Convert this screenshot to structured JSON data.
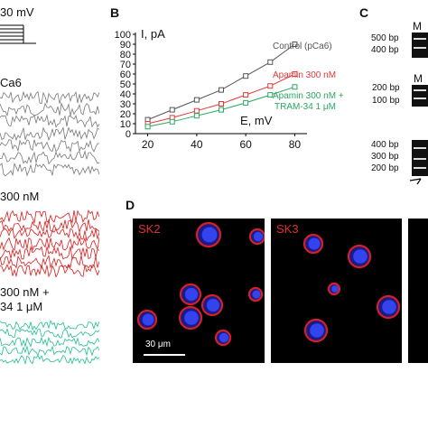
{
  "panelA": {
    "stim_label": "30 mV",
    "traces": [
      {
        "label": "Ca6",
        "color": "#777777"
      },
      {
        "label": "300 nM",
        "color": "#e01818"
      },
      {
        "label": "300 nM +",
        "label2": "34 1 μM",
        "color": "#1fbf8f"
      }
    ]
  },
  "panelB": {
    "letter": "B",
    "chart_data": {
      "type": "line",
      "xlabel": "E, mV",
      "ylabel": "I, pA",
      "xlim": [
        15,
        85
      ],
      "ylim": [
        0,
        100
      ],
      "xticks": [
        20,
        40,
        60,
        80
      ],
      "yticks": [
        0,
        10,
        20,
        30,
        40,
        50,
        60,
        70,
        80,
        90,
        100
      ],
      "grid": false,
      "legend": "inline-right",
      "series": [
        {
          "name": "Control (pCa6)",
          "color": "#555555",
          "x": [
            20,
            30,
            40,
            50,
            60,
            70,
            80
          ],
          "y": [
            14,
            24,
            34,
            44,
            58,
            72,
            90
          ]
        },
        {
          "name": "Apamin 300 nM",
          "color": "#e03a3a",
          "x": [
            20,
            30,
            40,
            50,
            60,
            70,
            80
          ],
          "y": [
            10,
            16,
            23,
            30,
            39,
            48,
            60
          ]
        },
        {
          "name": "Apamin 300 nM +",
          "name2": "TRAM-34 1 μM",
          "color": "#2aa860",
          "x": [
            20,
            30,
            40,
            50,
            60,
            70,
            80
          ],
          "y": [
            7,
            12,
            18,
            24,
            31,
            39,
            47
          ]
        }
      ]
    }
  },
  "panelC": {
    "letter": "C",
    "gel1": {
      "labels": [
        "500 bp",
        "400 bp"
      ],
      "lane": "M"
    },
    "gel2": {
      "labels": [
        "200 bp",
        "100 bp"
      ],
      "lane": "M"
    },
    "gel3": {
      "labels": [
        "400 bp",
        "300 bp",
        "200 bp"
      ]
    }
  },
  "panelD": {
    "letter": "D",
    "images": [
      {
        "label": "SK2"
      },
      {
        "label": "SK3"
      }
    ],
    "scalebar": "30 μm"
  }
}
